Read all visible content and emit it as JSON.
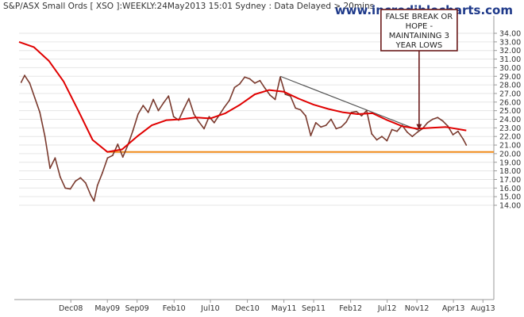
{
  "header": {
    "title": "S&P/ASX Small Ords [ XSO ]:WEEKLY:24May2013 15:01 Sydney : Data Delayed > 20mins",
    "watermark": "www.incrediblecharts.com"
  },
  "colors": {
    "price": "#7a3a2e",
    "moving_average": "#e00000",
    "support": "#f08a18",
    "trendline": "#555555",
    "annotation_box": "#6b1a1a",
    "grid": "#e6e6e6",
    "axis": "#999999"
  },
  "chart_data": {
    "type": "line",
    "title": "",
    "xlabel": "",
    "ylabel": "",
    "ylim": [
      13.0,
      35.0
    ],
    "y_ticks": [
      "14.00",
      "15.00",
      "16.00",
      "17.00",
      "18.00",
      "19.00",
      "20.00",
      "21.00",
      "22.00",
      "23.00",
      "24.00",
      "25.00",
      "26.00",
      "27.00",
      "28.00",
      "29.00",
      "30.00",
      "31.00",
      "32.00",
      "33.00",
      "34.00"
    ],
    "x_ticks": [
      "Dec08",
      "May09",
      "Sep09",
      "Feb10",
      "Jul10",
      "Dec10",
      "May11",
      "Sep11",
      "Feb12",
      "Jul12",
      "Nov12",
      "Apr13",
      "Aug13"
    ],
    "xlim": [
      "2008-05-01",
      "2013-09-15"
    ],
    "grid": true,
    "series": [
      {
        "name": "",
        "style": "price",
        "x": [
          "2008-05-10",
          "2008-05-24",
          "2008-06-14",
          "2008-07-05",
          "2008-07-26",
          "2008-08-16",
          "2008-09-06",
          "2008-09-27",
          "2008-10-18",
          "2008-11-08",
          "2008-11-29",
          "2008-12-20",
          "2009-01-10",
          "2009-01-31",
          "2009-02-21",
          "2009-03-07",
          "2009-03-21",
          "2009-04-11",
          "2009-05-02",
          "2009-05-23",
          "2009-06-13",
          "2009-07-04",
          "2009-07-25",
          "2009-08-15",
          "2009-09-05",
          "2009-09-26",
          "2009-10-17",
          "2009-11-07",
          "2009-11-28",
          "2009-12-19",
          "2010-01-09",
          "2010-01-30",
          "2010-02-20",
          "2010-03-13",
          "2010-04-03",
          "2010-04-24",
          "2010-05-15",
          "2010-06-05",
          "2010-06-26",
          "2010-07-17",
          "2010-08-07",
          "2010-08-28",
          "2010-09-18",
          "2010-10-09",
          "2010-10-30",
          "2010-11-20",
          "2010-12-11",
          "2011-01-01",
          "2011-01-22",
          "2011-02-12",
          "2011-03-05",
          "2011-03-26",
          "2011-04-16",
          "2011-05-07",
          "2011-05-28",
          "2011-06-18",
          "2011-07-09",
          "2011-07-30",
          "2011-08-20",
          "2011-09-10",
          "2011-10-01",
          "2011-10-22",
          "2011-11-12",
          "2011-12-03",
          "2011-12-24",
          "2012-01-14",
          "2012-02-04",
          "2012-02-25",
          "2012-03-17",
          "2012-04-07",
          "2012-04-28",
          "2012-05-19",
          "2012-06-09",
          "2012-06-30",
          "2012-07-21",
          "2012-08-11",
          "2012-09-01",
          "2012-09-22",
          "2012-10-13",
          "2012-11-03",
          "2012-11-24",
          "2012-12-15",
          "2013-01-05",
          "2013-01-26",
          "2013-02-16",
          "2013-03-09",
          "2013-03-30",
          "2013-04-20",
          "2013-05-11",
          "2013-05-24"
        ],
        "y": [
          28.3,
          29.1,
          28.2,
          26.5,
          24.8,
          22.0,
          18.3,
          19.5,
          17.3,
          16.0,
          15.9,
          16.8,
          17.2,
          16.6,
          15.2,
          14.5,
          16.3,
          17.8,
          19.5,
          19.8,
          21.1,
          19.6,
          21.0,
          22.7,
          24.6,
          25.6,
          24.8,
          26.3,
          25.0,
          25.9,
          26.7,
          24.3,
          23.9,
          25.2,
          26.4,
          24.6,
          23.7,
          22.9,
          24.3,
          23.6,
          24.5,
          25.4,
          26.2,
          27.7,
          28.1,
          28.9,
          28.7,
          28.2,
          28.5,
          27.6,
          26.8,
          26.3,
          28.9,
          26.9,
          26.7,
          25.3,
          25.1,
          24.4,
          22.1,
          23.6,
          23.1,
          23.3,
          24.0,
          22.9,
          23.1,
          23.7,
          24.8,
          24.9,
          24.4,
          25.0,
          22.3,
          21.6,
          22.0,
          21.5,
          22.8,
          22.6,
          23.3,
          22.5,
          22.0,
          22.5,
          22.9,
          23.6,
          24.0,
          24.2,
          23.8,
          23.2,
          22.2,
          22.6,
          21.7,
          21.0
        ]
      },
      {
        "name": "",
        "style": "moving_average",
        "x": [
          "2008-05-01",
          "2008-07-01",
          "2008-09-01",
          "2008-11-01",
          "2009-01-01",
          "2009-03-01",
          "2009-05-01",
          "2009-07-01",
          "2009-09-01",
          "2009-11-01",
          "2010-01-01",
          "2010-03-01",
          "2010-05-01",
          "2010-07-01",
          "2010-09-01",
          "2010-11-01",
          "2011-01-01",
          "2011-03-01",
          "2011-05-01",
          "2011-07-01",
          "2011-09-01",
          "2011-11-01",
          "2012-01-01",
          "2012-03-01",
          "2012-05-01",
          "2012-07-01",
          "2012-09-01",
          "2012-11-01",
          "2013-01-01",
          "2013-03-01",
          "2013-05-24"
        ],
        "y": [
          33.0,
          32.4,
          30.8,
          28.4,
          25.0,
          21.6,
          20.2,
          20.5,
          22.0,
          23.3,
          23.9,
          24.0,
          24.2,
          24.1,
          24.7,
          25.7,
          26.9,
          27.4,
          27.2,
          26.4,
          25.7,
          25.2,
          24.8,
          24.6,
          24.7,
          23.9,
          23.2,
          22.9,
          23.0,
          23.1,
          22.7
        ]
      }
    ],
    "lines": [
      {
        "type": "support",
        "x": [
          "2009-05-01",
          "2013-09-15"
        ],
        "y": [
          20.2,
          20.2
        ]
      },
      {
        "type": "trendline",
        "x": [
          "2011-04-16",
          "2012-11-10"
        ],
        "y": [
          29.0,
          22.7
        ]
      }
    ],
    "annotations": [
      {
        "text_lines": [
          "FALSE BREAK OR",
          "HOPE -",
          "MAINTAINING 3",
          "YEAR LOWS"
        ],
        "arrow_to": {
          "x": "2012-11-10",
          "y": 22.7
        }
      }
    ]
  }
}
